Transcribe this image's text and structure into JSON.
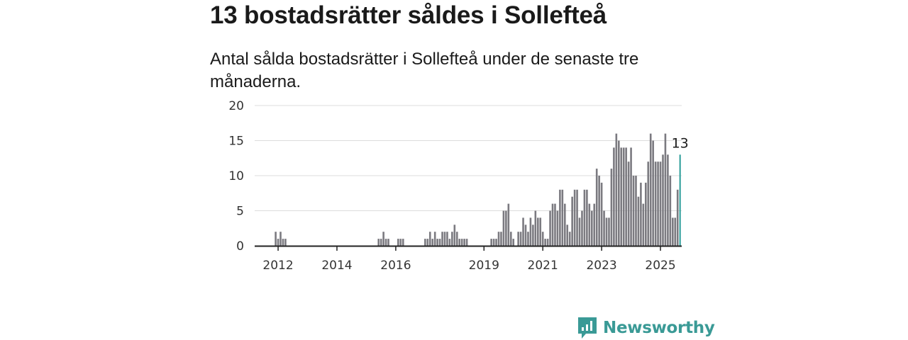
{
  "title": "13 bostadsrätter såldes i Sollefteå",
  "subtitle": "Antal sålda bostadsrätter i Sollefteå under de senaste tre månaderna.",
  "brand": {
    "name": "Newsworthy",
    "icon": "newsworthy-logo-icon",
    "color": "#3a9a96"
  },
  "chart_data": {
    "type": "bar",
    "title": "13 bostadsrätter såldes i Sollefteå",
    "subtitle": "Antal sålda bostadsrätter i Sollefteå under de senaste tre månaderna.",
    "xlabel": "",
    "ylabel": "",
    "ylim": [
      0,
      20
    ],
    "y_ticks": [
      0,
      5,
      10,
      15,
      20
    ],
    "x_ticks": [
      "2012",
      "2014",
      "2016",
      "2019",
      "2021",
      "2023",
      "2025"
    ],
    "grid": true,
    "colors": {
      "bars": "#7b7a80",
      "highlight": "#2a9d98",
      "grid": "#dcdcdc",
      "axis": "#222222"
    },
    "highlight_label": "13",
    "series": [
      {
        "start": "2011-12",
        "values": [
          2,
          1,
          2,
          1,
          1,
          0,
          0,
          0,
          0,
          0,
          0,
          0,
          0,
          0,
          0,
          0,
          0,
          0,
          0,
          0,
          0,
          0,
          0,
          0,
          0,
          0,
          0,
          0,
          0,
          0,
          0,
          0,
          0,
          0,
          0,
          0,
          0,
          0,
          0,
          0,
          0,
          0,
          1,
          1,
          2,
          1,
          1,
          0,
          0,
          0,
          1,
          1,
          1,
          0,
          0,
          0,
          0,
          0,
          0,
          0,
          0,
          1,
          1,
          2,
          1,
          2,
          1,
          1,
          2,
          2,
          2,
          1,
          2,
          3,
          2,
          1,
          1,
          1,
          1,
          0,
          0,
          0,
          0,
          0,
          0,
          0,
          0,
          0,
          1,
          1,
          1,
          2,
          2,
          5,
          5,
          6,
          2,
          1,
          0,
          2,
          2,
          4,
          3,
          2,
          4,
          3,
          5,
          4,
          4,
          2,
          1,
          1,
          5,
          6,
          6,
          5,
          8,
          8,
          6,
          3,
          2,
          7,
          8,
          8,
          4,
          5,
          8,
          8,
          6,
          5,
          6,
          11,
          10,
          9,
          5,
          4,
          4,
          11,
          14,
          16,
          15,
          14,
          14,
          14,
          12,
          14,
          10,
          10,
          7,
          9,
          6,
          9,
          12,
          16,
          15,
          12,
          12,
          12,
          13,
          16,
          13,
          10,
          4,
          4,
          8,
          13
        ]
      }
    ]
  }
}
